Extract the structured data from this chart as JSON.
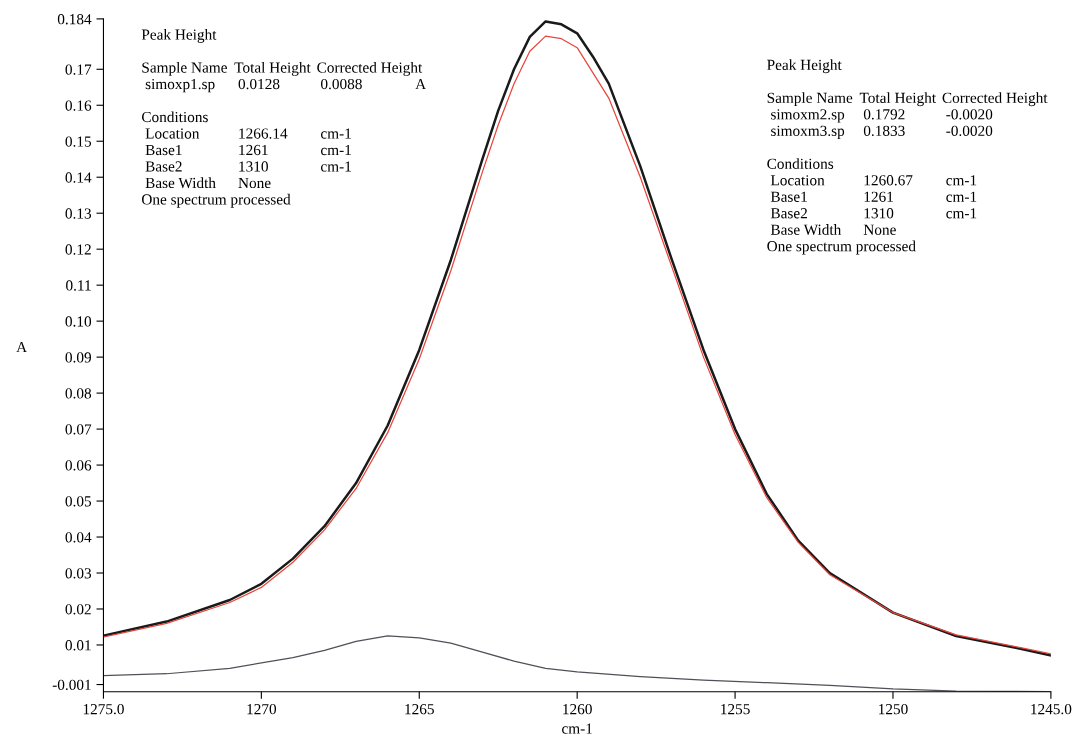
{
  "chart_data": {
    "type": "line",
    "xlabel": "cm-1",
    "ylabel": "A",
    "x": [
      1275,
      1273,
      1271,
      1270,
      1269,
      1268,
      1267,
      1266,
      1265,
      1264,
      1263,
      1262.5,
      1262,
      1261.5,
      1261,
      1260.5,
      1260,
      1259.5,
      1259,
      1258,
      1257,
      1256,
      1255,
      1254,
      1253,
      1252,
      1250,
      1248,
      1246,
      1245
    ],
    "series": [
      {
        "color": "#1a1a1a",
        "values": [
          0.0126,
          0.0165,
          0.0225,
          0.027,
          0.034,
          0.043,
          0.055,
          0.071,
          0.092,
          0.117,
          0.145,
          0.1585,
          0.17,
          0.179,
          0.1833,
          0.1825,
          0.18,
          0.1735,
          0.166,
          0.143,
          0.117,
          0.092,
          0.07,
          0.052,
          0.039,
          0.03,
          0.019,
          0.0125,
          0.009,
          0.0071
        ]
      },
      {
        "color": "#e8463c",
        "values": [
          0.0122,
          0.016,
          0.0218,
          0.026,
          0.033,
          0.042,
          0.0535,
          0.069,
          0.0895,
          0.114,
          0.1415,
          0.1545,
          0.166,
          0.175,
          0.1792,
          0.1785,
          0.176,
          0.169,
          0.162,
          0.14,
          0.115,
          0.09,
          0.0685,
          0.051,
          0.0385,
          0.0295,
          0.019,
          0.0128,
          0.0093,
          0.0075
        ]
      },
      {
        "color": "#505058",
        "x": [
          1275,
          1273,
          1271,
          1269,
          1268,
          1267,
          1266,
          1265,
          1264,
          1263,
          1262,
          1261,
          1260,
          1258,
          1256,
          1254,
          1252,
          1250,
          1248,
          1245
        ],
        "values": [
          0.0015,
          0.002,
          0.0035,
          0.0065,
          0.0085,
          0.011,
          0.0125,
          0.012,
          0.0105,
          0.008,
          0.0055,
          0.0035,
          0.0025,
          0.0012,
          0.0002,
          -0.0005,
          -0.0012,
          -0.0022,
          -0.0028,
          -0.003
        ]
      }
    ],
    "xlim": [
      1275,
      1245
    ],
    "ylim": [
      -0.003,
      0.184
    ],
    "xticks": [
      {
        "value": 1275,
        "label": "1275.0"
      },
      1270,
      1265,
      1260,
      1255,
      1250,
      {
        "value": 1245,
        "label": "1245.0"
      }
    ],
    "yticks": [
      -0.001,
      0.01,
      0.02,
      0.03,
      0.04,
      0.05,
      0.06,
      0.07,
      0.08,
      0.09,
      {
        "value": 0.1,
        "label": "0.10"
      },
      0.11,
      0.12,
      0.13,
      0.14,
      0.15,
      0.16,
      0.17,
      0.184
    ],
    "grid": false,
    "legend": false,
    "marker": "none",
    "line_style": "solid",
    "annotations": [
      "Peak Height\n\nSample Name  Total Height  Corrected Height\n simoxp1.sp  0.0128  0.0088  A\n\nConditions\n Location  1266.14  cm-1\n Base1  1261  cm-1\n Base2  1310  cm-1\n Base Width  None\nOne spectrum processed",
      "Peak Height\n\nSample Name  Total Height  Corrected Height\n simoxm2.sp  0.1792  -0.0020\n simoxm3.sp  0.1833  -0.0020\n\nConditions\n Location  1260.67  cm-1\n Base1  1261  cm-1\n Base2  1310  cm-1\n Base Width  None\nOne spectrum processed"
    ]
  }
}
